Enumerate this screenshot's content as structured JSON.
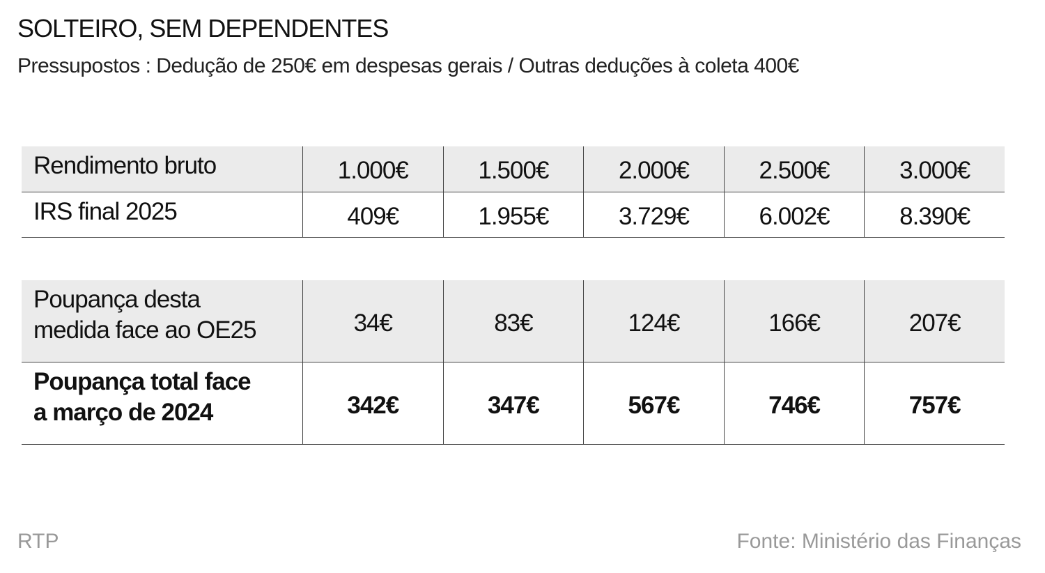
{
  "header": {
    "title": "SOLTEIRO, SEM DEPENDENTES",
    "subtitle": "Pressupostos : Dedução de 250€ em despesas gerais / Outras deduções à coleta 400€"
  },
  "tables": [
    {
      "rows": [
        [
          [
            "Rendimento bruto"
          ],
          "1.000€",
          "1.500€",
          "2.000€",
          "2.500€",
          "3.000€"
        ],
        [
          [
            "IRS final 2025"
          ],
          "409€",
          "1.955€",
          "3.729€",
          "6.002€",
          "8.390€"
        ]
      ]
    },
    {
      "rows": [
        [
          [
            "Poupança desta",
            "medida face ao OE25"
          ],
          "34€",
          "83€",
          "124€",
          "166€",
          "207€"
        ],
        [
          [
            "Poupança total face",
            "a março de 2024"
          ],
          "342€",
          "347€",
          "567€",
          "746€",
          "757€"
        ]
      ]
    }
  ],
  "footer": {
    "credit": "RTP",
    "source": "Fonte: Ministério das Finanças"
  }
}
